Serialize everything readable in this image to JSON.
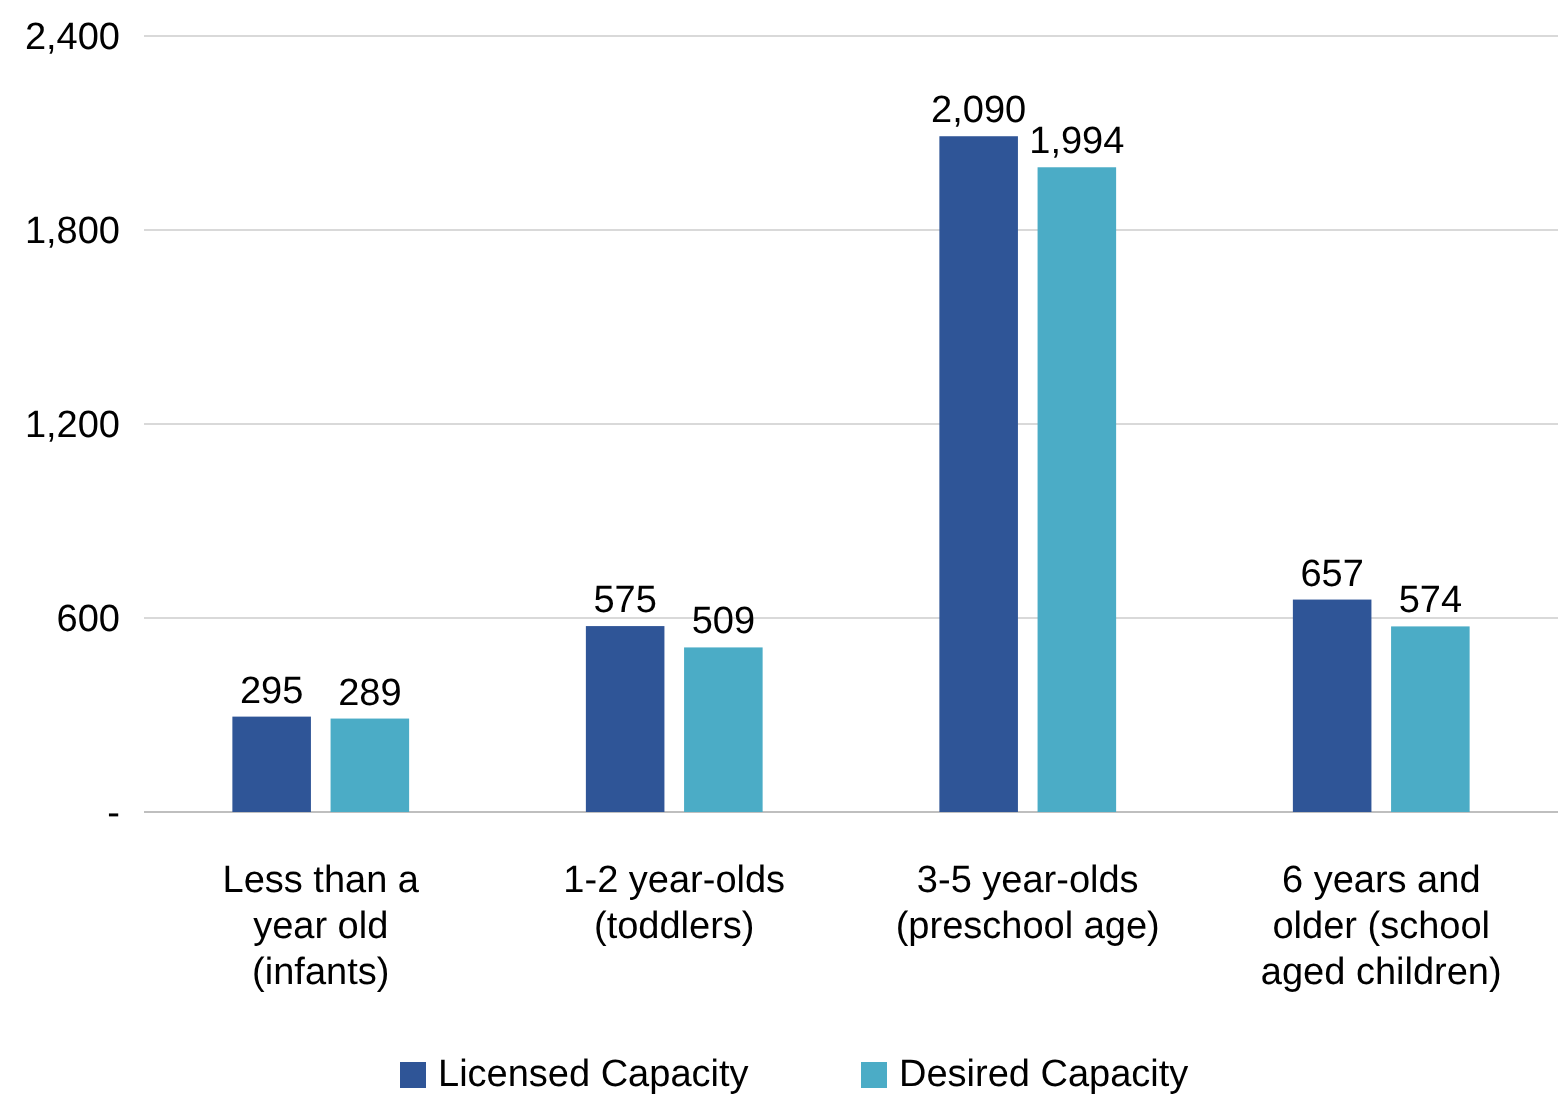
{
  "chart_data": {
    "type": "bar",
    "categories": [
      "Less than a year old (infants)",
      "1-2 year-olds (toddlers)",
      "3-5 year-olds (preschool age)",
      "6 years and older (school aged children)"
    ],
    "series": [
      {
        "name": "Licensed Capacity",
        "color": "#2f5597",
        "values": [
          295,
          575,
          2090,
          657
        ],
        "value_labels": [
          "295",
          "575",
          "2,090",
          "657"
        ]
      },
      {
        "name": "Desired Capacity",
        "color": "#4bacc6",
        "values": [
          289,
          509,
          1994,
          574
        ],
        "value_labels": [
          "289",
          "509",
          "1,994",
          "574"
        ]
      }
    ],
    "ylim": [
      0,
      2400
    ],
    "yticks": [
      {
        "value": 0,
        "label": "-"
      },
      600,
      {
        "value": 1200,
        "label": "1,200"
      },
      {
        "value": 1800,
        "label": "1,800"
      },
      {
        "value": 2400,
        "label": "2,400"
      }
    ],
    "grid": "y",
    "legend": "bottom"
  }
}
